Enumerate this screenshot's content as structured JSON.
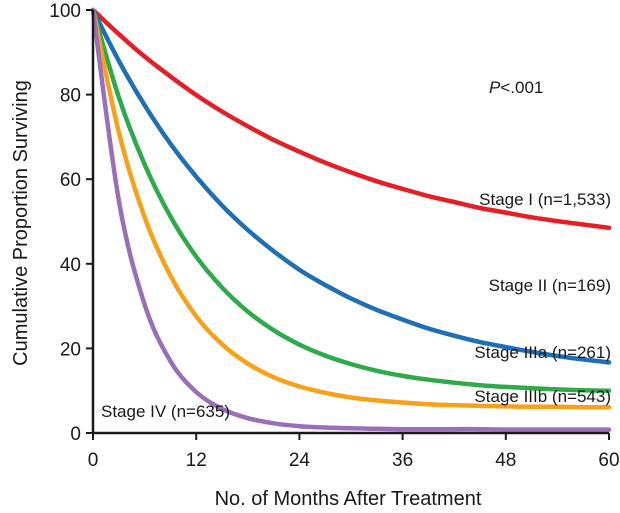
{
  "chart_data": {
    "type": "line",
    "title": "",
    "xlabel": "No. of Months After Treatment",
    "ylabel": "Cumulative Proportion Surviving",
    "xlim": [
      0,
      60
    ],
    "ylim": [
      0,
      100
    ],
    "x_ticks": [
      0,
      12,
      24,
      36,
      48,
      60
    ],
    "y_ticks": [
      0,
      20,
      40,
      60,
      80,
      100
    ],
    "x_tick_labels": [
      "0",
      "12",
      "24",
      "36",
      "48",
      "60"
    ],
    "y_tick_labels": [
      "0",
      "20",
      "40",
      "60",
      "80",
      "100"
    ],
    "grid": false,
    "legend": "none (series labeled directly on curves)",
    "annotation": {
      "prefix": "P",
      "text": "<.001"
    },
    "x": [
      0,
      3,
      6,
      9,
      12,
      15,
      18,
      21,
      24,
      27,
      30,
      33,
      36,
      39,
      42,
      45,
      48,
      51,
      54,
      57,
      60
    ],
    "series": [
      {
        "name": "Stage I (n=1,533)",
        "color": "#e41f26",
        "values": [
          100,
          94.3,
          89.0,
          84.3,
          79.9,
          76.0,
          72.5,
          69.3,
          66.5,
          63.9,
          61.6,
          59.5,
          57.7,
          56.0,
          54.6,
          53.2,
          52.1,
          51.0,
          50.1,
          49.3,
          48.5
        ]
      },
      {
        "name": "Stage II (n=169)",
        "color": "#1f6fb6",
        "values": [
          100,
          88.0,
          77.5,
          68.4,
          60.6,
          53.8,
          48.0,
          43.0,
          38.6,
          35.0,
          31.8,
          29.1,
          26.8,
          24.7,
          23.0,
          21.5,
          20.3,
          19.2,
          18.2,
          17.4,
          16.7
        ]
      },
      {
        "name": "Stage IIIa (n=261)",
        "color": "#2eaa4a",
        "values": [
          100,
          79.4,
          63.5,
          51.2,
          41.7,
          34.4,
          28.7,
          24.3,
          20.9,
          18.3,
          16.3,
          14.7,
          13.5,
          12.6,
          11.9,
          11.3,
          10.9,
          10.6,
          10.3,
          10.1,
          10.0
        ]
      },
      {
        "name": "Stage IIIb (n=543)",
        "color": "#f7a11a",
        "values": [
          100,
          71.1,
          51.0,
          37.2,
          27.6,
          21.0,
          16.4,
          13.2,
          11.0,
          9.5,
          8.4,
          7.7,
          7.2,
          6.8,
          6.6,
          6.4,
          6.3,
          6.2,
          6.2,
          6.1,
          6.1
        ]
      },
      {
        "name": "Stage IV (n=635)",
        "color": "#9b6fb7",
        "values": [
          100,
          55.0,
          30.4,
          17.0,
          9.7,
          5.7,
          3.5,
          2.3,
          1.6,
          1.3,
          1.1,
          1.0,
          0.9,
          0.9,
          0.9,
          0.9,
          0.8,
          0.8,
          0.8,
          0.8,
          0.8
        ]
      }
    ]
  }
}
